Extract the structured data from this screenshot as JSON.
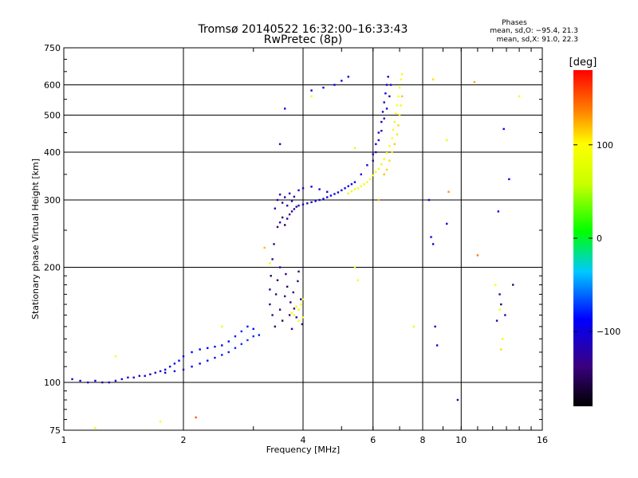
{
  "chart_data": {
    "type": "scatter",
    "title": "Tromsø 20140522 16:32:00–16:33:43",
    "subtitle": "RwPretec (8p)",
    "xlabel": "Frequency [MHz]",
    "ylabel": "Stationary phase Virtual Height [km]",
    "x_scale": "log",
    "y_scale": "log",
    "xlim": [
      1,
      16
    ],
    "ylim": [
      75,
      750
    ],
    "x_ticks": [
      1,
      2,
      4,
      6,
      8,
      10,
      16
    ],
    "x_tick_labels": [
      "1",
      "2",
      "4",
      "6",
      "8",
      "10",
      "16"
    ],
    "y_ticks": [
      75,
      100,
      200,
      300,
      400,
      500,
      600,
      750
    ],
    "y_tick_labels": [
      "75",
      "100",
      "200",
      "300",
      "400",
      "500",
      "600",
      "750"
    ],
    "grid": true,
    "legend_text": {
      "title": "Phases",
      "line1": "mean, sd,O: −95.4, 21.3",
      "line2": "mean, sd,X:  91.0, 22.3"
    },
    "colorbar": {
      "label": "[deg]",
      "range": [
        -180,
        180
      ],
      "ticks": [
        100,
        0,
        -100
      ],
      "tick_labels": [
        "100",
        "0",
        "−100"
      ]
    },
    "series": [
      {
        "name": "O-mode traces",
        "points": [
          [
            1.05,
            102,
            -110
          ],
          [
            1.1,
            101,
            -105
          ],
          [
            1.15,
            100,
            -112
          ],
          [
            1.2,
            101,
            -100
          ],
          [
            1.25,
            100,
            -115
          ],
          [
            1.3,
            100,
            -108
          ],
          [
            1.35,
            101,
            -110
          ],
          [
            1.4,
            102,
            -104
          ],
          [
            1.45,
            103,
            -112
          ],
          [
            1.5,
            103,
            -98
          ],
          [
            1.55,
            104,
            -106
          ],
          [
            1.6,
            104,
            -110
          ],
          [
            1.65,
            105,
            -100
          ],
          [
            1.7,
            106,
            -108
          ],
          [
            1.75,
            107,
            -104
          ],
          [
            1.8,
            108,
            -112
          ],
          [
            1.85,
            110,
            -98
          ],
          [
            1.9,
            112,
            -95
          ],
          [
            1.95,
            114,
            -90
          ],
          [
            2.0,
            117,
            -92
          ],
          [
            2.1,
            120,
            -88
          ],
          [
            2.2,
            122,
            -90
          ],
          [
            2.3,
            123,
            -86
          ],
          [
            2.4,
            124,
            -84
          ],
          [
            2.5,
            125,
            -88
          ],
          [
            2.6,
            128,
            -85
          ],
          [
            2.7,
            132,
            -80
          ],
          [
            2.8,
            136,
            -78
          ],
          [
            2.9,
            140,
            -82
          ],
          [
            3.0,
            138,
            -85
          ],
          [
            3.1,
            133,
            -80
          ],
          [
            1.8,
            106,
            -100
          ],
          [
            1.9,
            107,
            -96
          ],
          [
            2.0,
            108,
            -98
          ],
          [
            2.1,
            110,
            -90
          ],
          [
            2.2,
            112,
            -88
          ],
          [
            2.3,
            114,
            -86
          ],
          [
            2.4,
            116,
            -82
          ],
          [
            2.5,
            118,
            -80
          ],
          [
            2.6,
            120,
            -78
          ],
          [
            2.7,
            123,
            -76
          ],
          [
            2.8,
            126,
            -74
          ],
          [
            2.9,
            129,
            -72
          ],
          [
            3.0,
            132,
            -76
          ],
          [
            3.3,
            160,
            -140
          ],
          [
            3.3,
            175,
            -130
          ],
          [
            3.32,
            190,
            -150
          ],
          [
            3.35,
            210,
            -120
          ],
          [
            3.35,
            150,
            -135
          ],
          [
            3.38,
            230,
            -125
          ],
          [
            3.4,
            140,
            -145
          ],
          [
            3.42,
            170,
            -130
          ],
          [
            3.45,
            185,
            -155
          ],
          [
            3.5,
            200,
            -120
          ],
          [
            3.5,
            155,
            -138
          ],
          [
            3.55,
            145,
            -150
          ],
          [
            3.6,
            168,
            -128
          ],
          [
            3.62,
            192,
            -132
          ],
          [
            3.65,
            178,
            -148
          ],
          [
            3.7,
            150,
            -140
          ],
          [
            3.72,
            162,
            -135
          ],
          [
            3.75,
            138,
            -130
          ],
          [
            3.78,
            172,
            -142
          ],
          [
            3.8,
            156,
            -138
          ],
          [
            3.85,
            148,
            -125
          ],
          [
            3.88,
            184,
            -132
          ],
          [
            3.9,
            195,
            -140
          ],
          [
            3.95,
            165,
            -130
          ],
          [
            3.98,
            142,
            -150
          ],
          [
            3.45,
            255,
            -140
          ],
          [
            3.5,
            262,
            -130
          ],
          [
            3.55,
            270,
            -145
          ],
          [
            3.6,
            258,
            -150
          ],
          [
            3.65,
            268,
            -120
          ],
          [
            3.7,
            275,
            -135
          ],
          [
            3.75,
            280,
            -128
          ],
          [
            3.8,
            284,
            -118
          ],
          [
            3.85,
            288,
            -125
          ],
          [
            3.9,
            290,
            -112
          ],
          [
            4.0,
            292,
            -110
          ],
          [
            4.1,
            294,
            -105
          ],
          [
            4.2,
            296,
            -108
          ],
          [
            4.3,
            298,
            -100
          ],
          [
            4.4,
            300,
            -104
          ],
          [
            4.5,
            302,
            -98
          ],
          [
            4.6,
            305,
            -100
          ],
          [
            4.7,
            308,
            -96
          ],
          [
            4.8,
            311,
            -94
          ],
          [
            4.9,
            314,
            -92
          ],
          [
            5.0,
            318,
            -95
          ],
          [
            5.1,
            322,
            -90
          ],
          [
            5.2,
            326,
            -88
          ],
          [
            5.3,
            330,
            -92
          ],
          [
            5.4,
            334,
            -86
          ],
          [
            3.4,
            285,
            -125
          ],
          [
            3.45,
            300,
            -118
          ],
          [
            3.5,
            310,
            -130
          ],
          [
            3.55,
            295,
            -140
          ],
          [
            3.6,
            305,
            -112
          ],
          [
            3.65,
            290,
            -122
          ],
          [
            3.7,
            312,
            -116
          ],
          [
            3.75,
            298,
            -128
          ],
          [
            3.8,
            306,
            -110
          ],
          [
            3.9,
            318,
            -104
          ],
          [
            4.0,
            322,
            -108
          ],
          [
            4.2,
            325,
            -102
          ],
          [
            4.4,
            320,
            -100
          ],
          [
            4.6,
            315,
            -98
          ],
          [
            5.6,
            350,
            -100
          ],
          [
            5.8,
            370,
            -95
          ],
          [
            6.0,
            395,
            -92
          ],
          [
            6.1,
            420,
            -96
          ],
          [
            6.2,
            450,
            -98
          ],
          [
            6.3,
            480,
            -94
          ],
          [
            6.35,
            510,
            -100
          ],
          [
            6.4,
            540,
            -96
          ],
          [
            6.45,
            570,
            -98
          ],
          [
            6.5,
            600,
            -95
          ],
          [
            6.55,
            630,
            -100
          ],
          [
            6.0,
            380,
            -130
          ],
          [
            6.1,
            400,
            -125
          ],
          [
            6.2,
            430,
            -120
          ],
          [
            6.3,
            455,
            -118
          ],
          [
            6.4,
            490,
            -125
          ],
          [
            6.5,
            520,
            -112
          ],
          [
            6.6,
            560,
            -118
          ],
          [
            6.65,
            600,
            -108
          ],
          [
            4.2,
            580,
            -95
          ],
          [
            4.5,
            590,
            -90
          ],
          [
            4.8,
            600,
            -92
          ],
          [
            5.0,
            615,
            -98
          ],
          [
            5.2,
            630,
            -85
          ],
          [
            3.5,
            420,
            -120
          ],
          [
            3.6,
            520,
            -90
          ],
          [
            8.3,
            300,
            -100
          ],
          [
            8.4,
            240,
            -98
          ],
          [
            8.5,
            230,
            -105
          ],
          [
            9.2,
            260,
            -96
          ],
          [
            12.4,
            280,
            -92
          ],
          [
            12.8,
            460,
            -95
          ],
          [
            13.2,
            340,
            -98
          ],
          [
            8.6,
            140,
            -110
          ],
          [
            8.7,
            125,
            -100
          ],
          [
            9.8,
            90,
            -105
          ],
          [
            13.5,
            180,
            -140
          ],
          [
            12.5,
            170,
            -130
          ],
          [
            12.6,
            160,
            -150
          ],
          [
            12.9,
            150,
            -110
          ],
          [
            12.3,
            145,
            -120
          ]
        ]
      },
      {
        "name": "X-mode traces",
        "points": [
          [
            5.2,
            312,
            85
          ],
          [
            5.3,
            316,
            90
          ],
          [
            5.4,
            320,
            95
          ],
          [
            5.5,
            322,
            92
          ],
          [
            5.6,
            326,
            98
          ],
          [
            5.7,
            330,
            88
          ],
          [
            5.8,
            334,
            95
          ],
          [
            5.9,
            340,
            100
          ],
          [
            6.0,
            348,
            96
          ],
          [
            6.1,
            355,
            92
          ],
          [
            6.2,
            362,
            98
          ],
          [
            6.3,
            372,
            104
          ],
          [
            6.4,
            384,
            96
          ],
          [
            6.5,
            398,
            90
          ],
          [
            6.6,
            415,
            94
          ],
          [
            6.7,
            435,
            100
          ],
          [
            6.75,
            458,
            96
          ],
          [
            6.8,
            480,
            92
          ],
          [
            6.85,
            505,
            98
          ],
          [
            6.9,
            530,
            100
          ],
          [
            6.95,
            560,
            94
          ],
          [
            7.0,
            590,
            96
          ],
          [
            7.05,
            620,
            98
          ],
          [
            7.1,
            640,
            95
          ],
          [
            6.6,
            380,
            110
          ],
          [
            6.7,
            400,
            105
          ],
          [
            6.8,
            420,
            115
          ],
          [
            6.9,
            445,
            108
          ],
          [
            6.95,
            470,
            112
          ],
          [
            7.0,
            500,
            110
          ],
          [
            7.05,
            530,
            104
          ],
          [
            7.1,
            560,
            118
          ],
          [
            6.5,
            360,
            115
          ],
          [
            6.4,
            350,
            120
          ],
          [
            3.8,
            150,
            85
          ],
          [
            3.9,
            155,
            90
          ],
          [
            3.95,
            160,
            95
          ],
          [
            4.0,
            165,
            92
          ],
          [
            4.0,
            148,
            100
          ],
          [
            3.85,
            158,
            88
          ],
          [
            3.75,
            152,
            96
          ],
          [
            3.9,
            145,
            92
          ],
          [
            9.2,
            430,
            90
          ],
          [
            8.5,
            620,
            110
          ],
          [
            9.3,
            315,
            130
          ],
          [
            10.8,
            610,
            125
          ],
          [
            14.0,
            560,
            95
          ],
          [
            2.5,
            140,
            85
          ],
          [
            1.35,
            117,
            95
          ],
          [
            1.2,
            76,
            90
          ],
          [
            1.75,
            79,
            100
          ],
          [
            2.15,
            81,
            150
          ],
          [
            3.2,
            225,
            120
          ],
          [
            3.3,
            205,
            90
          ],
          [
            5.4,
            200,
            85
          ],
          [
            5.5,
            185,
            95
          ],
          [
            7.6,
            140,
            80
          ],
          [
            12.7,
            130,
            90
          ],
          [
            12.6,
            122,
            110
          ],
          [
            12.2,
            180,
            100
          ],
          [
            11.0,
            215,
            140
          ],
          [
            6.2,
            300,
            120
          ],
          [
            4.2,
            560,
            95
          ],
          [
            5.4,
            410,
            80
          ],
          [
            12.5,
            155,
            95
          ]
        ]
      }
    ]
  }
}
